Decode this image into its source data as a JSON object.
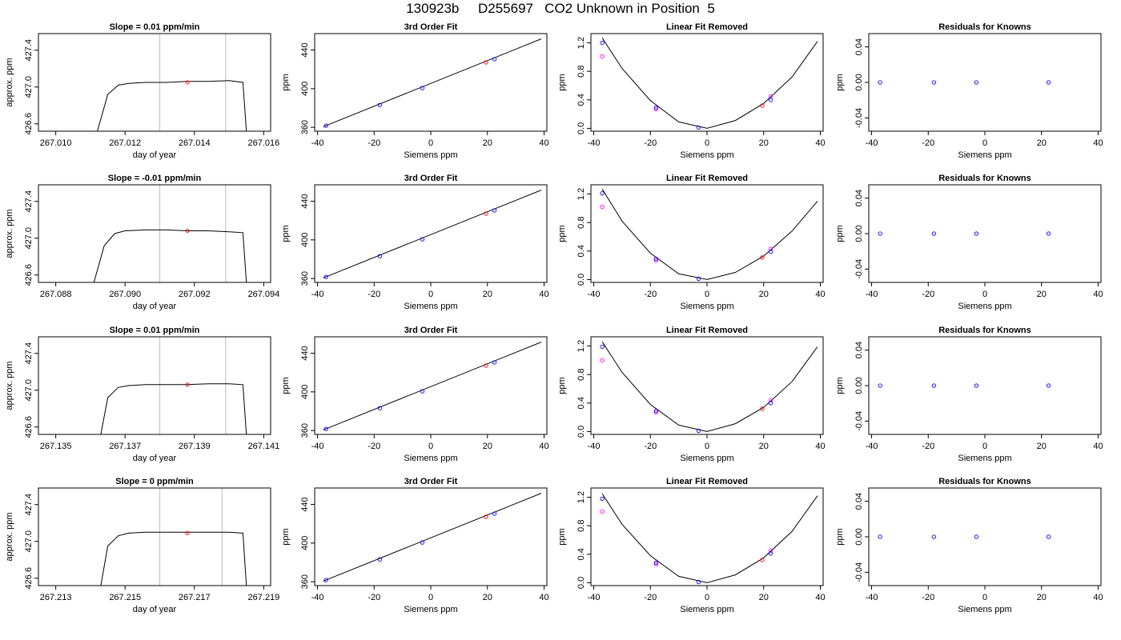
{
  "page": {
    "title": "130923b     D255697   CO2 Unknown in Position  5"
  },
  "style": {
    "line_color": "#000000",
    "grid_color": "#c8c8c8",
    "known_color": "#0000ff",
    "unknown_color": "#ff0000",
    "alt_color": "#ff00ff"
  },
  "chart_data": [
    {
      "type": "line",
      "title": "Slope =  0.01  ppm/min",
      "xlabel": "day of year",
      "ylabel": "approx. ppm",
      "xlim": [
        267.0095,
        267.0162
      ],
      "ylim": [
        426.52,
        427.58
      ],
      "xticks": [
        "267.010",
        "267.012",
        "267.014",
        "267.016"
      ],
      "xtick_values": [
        267.01,
        267.012,
        267.014,
        267.016
      ],
      "yticks": [
        "426.6",
        "427.0",
        "427.4"
      ],
      "ytick_values": [
        426.6,
        427.0,
        427.4
      ],
      "vlines": [
        267.013,
        267.0149
      ],
      "marker": {
        "x": 267.0138,
        "y": 427.05
      },
      "series": [
        {
          "x": [
            267.0112,
            267.0115,
            267.0118,
            267.0121,
            267.0126,
            267.0132,
            267.0138,
            267.0144,
            267.015,
            267.0154,
            267.0155
          ],
          "y": [
            426.52,
            426.92,
            427.02,
            427.04,
            427.05,
            427.05,
            427.06,
            427.06,
            427.07,
            427.05,
            426.52
          ]
        }
      ]
    },
    {
      "type": "scatter",
      "title": "3rd Order Fit",
      "xlabel": "Siemens ppm",
      "ylabel": "ppm",
      "xlim": [
        -41,
        41
      ],
      "ylim": [
        356,
        457
      ],
      "xticks": [
        "-40",
        "-20",
        "0",
        "20",
        "40"
      ],
      "xtick_values": [
        -40,
        -20,
        0,
        20,
        40
      ],
      "yticks": [
        "360",
        "400",
        "440"
      ],
      "ytick_values": [
        360,
        400,
        440
      ],
      "fit_line": {
        "x": [
          -38,
          39
        ],
        "y": [
          360.6,
          451.5
        ]
      },
      "knowns": {
        "x": [
          -37,
          -18,
          -3,
          22.5
        ],
        "y": [
          361.7,
          383.1,
          400.6,
          430.5
        ]
      },
      "unknown": {
        "x": [
          19.5
        ],
        "y": [
          427.2
        ]
      }
    },
    {
      "type": "scatter",
      "title": "Linear Fit Removed",
      "xlabel": "Siemens ppm",
      "ylabel": "ppm",
      "xlim": [
        -41,
        41
      ],
      "ylim": [
        -0.04,
        1.33
      ],
      "xticks": [
        "-40",
        "-20",
        "0",
        "20",
        "40"
      ],
      "xtick_values": [
        -40,
        -20,
        0,
        20,
        40
      ],
      "yticks": [
        "0.0",
        "0.4",
        "0.8",
        "1.2"
      ],
      "ytick_values": [
        0.0,
        0.4,
        0.8,
        1.2
      ],
      "curve": {
        "x": [
          -37,
          -30,
          -20,
          -10,
          0,
          10,
          20,
          30,
          39
        ],
        "y": [
          1.27,
          0.84,
          0.39,
          0.09,
          0.0,
          0.11,
          0.35,
          0.72,
          1.22
        ]
      },
      "knowns": {
        "x": [
          -37,
          -18,
          -3,
          22.5
        ],
        "y": [
          1.2,
          0.29,
          0.01,
          0.4
        ]
      },
      "alt": {
        "x": [
          -37,
          -18,
          22.5
        ],
        "y": [
          1.01,
          0.27,
          0.45
        ]
      },
      "unknown": {
        "x": [
          19.5
        ],
        "y": [
          0.32
        ]
      }
    },
    {
      "type": "scatter",
      "title": "Residuals for Knowns",
      "xlabel": "Siemens ppm",
      "ylabel": "ppm",
      "xlim": [
        -41,
        41
      ],
      "ylim": [
        -0.055,
        0.055
      ],
      "xticks": [
        "-40",
        "-20",
        "0",
        "20",
        "40"
      ],
      "xtick_values": [
        -40,
        -20,
        0,
        20,
        40
      ],
      "yticks": [
        "-0.04",
        "0.00",
        "0.04"
      ],
      "ytick_values": [
        -0.04,
        0.0,
        0.04
      ],
      "knowns": {
        "x": [
          -37,
          -18,
          -3,
          22.5
        ],
        "y": [
          0.0,
          0.0,
          0.0,
          0.0
        ]
      }
    },
    {
      "type": "line",
      "title": "Slope =  -0.01  ppm/min",
      "xlabel": "day of year",
      "ylabel": "approx. ppm",
      "xlim": [
        267.0875,
        267.0942
      ],
      "ylim": [
        426.52,
        427.58
      ],
      "xticks": [
        "267.088",
        "267.090",
        "267.092",
        "267.094"
      ],
      "xtick_values": [
        267.088,
        267.09,
        267.092,
        267.094
      ],
      "yticks": [
        "426.6",
        "427.0",
        "427.4"
      ],
      "ytick_values": [
        426.6,
        427.0,
        427.4
      ],
      "vlines": [
        267.091,
        267.0929
      ],
      "marker": {
        "x": 267.0918,
        "y": 427.08
      },
      "series": [
        {
          "x": [
            267.0891,
            267.0894,
            267.0897,
            267.09,
            267.0906,
            267.0912,
            267.0918,
            267.0924,
            267.093,
            267.0934,
            267.0935
          ],
          "y": [
            426.52,
            426.92,
            427.05,
            427.08,
            427.09,
            427.09,
            427.08,
            427.08,
            427.07,
            427.06,
            426.52
          ]
        }
      ]
    },
    {
      "type": "scatter",
      "title": "3rd Order Fit",
      "xlabel": "Siemens ppm",
      "ylabel": "ppm",
      "xlim": [
        -41,
        41
      ],
      "ylim": [
        356,
        457
      ],
      "xticks": [
        "-40",
        "-20",
        "0",
        "20",
        "40"
      ],
      "xtick_values": [
        -40,
        -20,
        0,
        20,
        40
      ],
      "yticks": [
        "360",
        "400",
        "440"
      ],
      "ytick_values": [
        360,
        400,
        440
      ],
      "fit_line": {
        "x": [
          -38,
          39
        ],
        "y": [
          360.6,
          451.5
        ]
      },
      "knowns": {
        "x": [
          -37,
          -18,
          -3,
          22.5
        ],
        "y": [
          361.7,
          383.1,
          400.6,
          430.5
        ]
      },
      "unknown": {
        "x": [
          19.5
        ],
        "y": [
          427.2
        ]
      }
    },
    {
      "type": "scatter",
      "title": "Linear Fit Removed",
      "xlabel": "Siemens ppm",
      "ylabel": "ppm",
      "xlim": [
        -41,
        41
      ],
      "ylim": [
        -0.04,
        1.33
      ],
      "xticks": [
        "-40",
        "-20",
        "0",
        "20",
        "40"
      ],
      "xtick_values": [
        -40,
        -20,
        0,
        20,
        40
      ],
      "yticks": [
        "0.0",
        "0.4",
        "0.8",
        "1.2"
      ],
      "ytick_values": [
        0.0,
        0.4,
        0.8,
        1.2
      ],
      "curve": {
        "x": [
          -37,
          -30,
          -20,
          -10,
          0,
          10,
          20,
          30,
          39
        ],
        "y": [
          1.27,
          0.82,
          0.37,
          0.08,
          0.0,
          0.1,
          0.33,
          0.68,
          1.1
        ]
      },
      "knowns": {
        "x": [
          -37,
          -18,
          -3,
          22.5
        ],
        "y": [
          1.21,
          0.29,
          0.01,
          0.39
        ]
      },
      "alt": {
        "x": [
          -37,
          -18,
          22.5
        ],
        "y": [
          1.02,
          0.27,
          0.43
        ]
      },
      "unknown": {
        "x": [
          19.5
        ],
        "y": [
          0.31
        ]
      }
    },
    {
      "type": "scatter",
      "title": "Residuals for Knowns",
      "xlabel": "Siemens ppm",
      "ylabel": "ppm",
      "xlim": [
        -41,
        41
      ],
      "ylim": [
        -0.055,
        0.055
      ],
      "xticks": [
        "-40",
        "-20",
        "0",
        "20",
        "40"
      ],
      "xtick_values": [
        -40,
        -20,
        0,
        20,
        40
      ],
      "yticks": [
        "-0.04",
        "0.00",
        "0.04"
      ],
      "ytick_values": [
        -0.04,
        0.0,
        0.04
      ],
      "knowns": {
        "x": [
          -37,
          -18,
          -3,
          22.5
        ],
        "y": [
          0.0,
          0.0,
          0.0,
          0.0
        ]
      }
    },
    {
      "type": "line",
      "title": "Slope =  0.01  ppm/min",
      "xlabel": "day of year",
      "ylabel": "approx. ppm",
      "xlim": [
        267.1345,
        267.1412
      ],
      "ylim": [
        426.52,
        427.58
      ],
      "xticks": [
        "267.135",
        "267.137",
        "267.139",
        "267.141"
      ],
      "xtick_values": [
        267.135,
        267.137,
        267.139,
        267.141
      ],
      "yticks": [
        "426.6",
        "427.0",
        "427.4"
      ],
      "ytick_values": [
        426.6,
        427.0,
        427.4
      ],
      "vlines": [
        267.138,
        267.1399
      ],
      "marker": {
        "x": 267.1388,
        "y": 427.06
      },
      "series": [
        {
          "x": [
            267.1363,
            267.1365,
            267.1368,
            267.1371,
            267.1376,
            267.1382,
            267.1388,
            267.1394,
            267.14,
            267.1404,
            267.1405
          ],
          "y": [
            426.52,
            426.92,
            427.03,
            427.05,
            427.06,
            427.06,
            427.06,
            427.07,
            427.07,
            427.06,
            426.52
          ]
        }
      ]
    },
    {
      "type": "scatter",
      "title": "3rd Order Fit",
      "xlabel": "Siemens ppm",
      "ylabel": "ppm",
      "xlim": [
        -41,
        41
      ],
      "ylim": [
        356,
        457
      ],
      "xticks": [
        "-40",
        "-20",
        "0",
        "20",
        "40"
      ],
      "xtick_values": [
        -40,
        -20,
        0,
        20,
        40
      ],
      "yticks": [
        "360",
        "400",
        "440"
      ],
      "ytick_values": [
        360,
        400,
        440
      ],
      "fit_line": {
        "x": [
          -38,
          39
        ],
        "y": [
          360.6,
          451.5
        ]
      },
      "knowns": {
        "x": [
          -37,
          -18,
          -3,
          22.5
        ],
        "y": [
          361.7,
          383.1,
          400.6,
          430.5
        ]
      },
      "unknown": {
        "x": [
          19.5
        ],
        "y": [
          427.2
        ]
      }
    },
    {
      "type": "scatter",
      "title": "Linear Fit Removed",
      "xlabel": "Siemens ppm",
      "ylabel": "ppm",
      "xlim": [
        -41,
        41
      ],
      "ylim": [
        -0.04,
        1.33
      ],
      "xticks": [
        "-40",
        "-20",
        "0",
        "20",
        "40"
      ],
      "xtick_values": [
        -40,
        -20,
        0,
        20,
        40
      ],
      "yticks": [
        "0.0",
        "0.4",
        "0.8",
        "1.2"
      ],
      "ytick_values": [
        0.0,
        0.4,
        0.8,
        1.2
      ],
      "curve": {
        "x": [
          -37,
          -30,
          -20,
          -10,
          0,
          10,
          20,
          30,
          39
        ],
        "y": [
          1.26,
          0.83,
          0.38,
          0.09,
          0.0,
          0.11,
          0.34,
          0.7,
          1.19
        ]
      },
      "knowns": {
        "x": [
          -37,
          -18,
          -3,
          22.5
        ],
        "y": [
          1.19,
          0.29,
          0.01,
          0.4
        ]
      },
      "alt": {
        "x": [
          -37,
          -18,
          22.5
        ],
        "y": [
          1.0,
          0.27,
          0.44
        ]
      },
      "unknown": {
        "x": [
          19.5
        ],
        "y": [
          0.32
        ]
      }
    },
    {
      "type": "scatter",
      "title": "Residuals for Knowns",
      "xlabel": "Siemens ppm",
      "ylabel": "ppm",
      "xlim": [
        -41,
        41
      ],
      "ylim": [
        -0.055,
        0.055
      ],
      "xticks": [
        "-40",
        "-20",
        "0",
        "20",
        "40"
      ],
      "xtick_values": [
        -40,
        -20,
        0,
        20,
        40
      ],
      "yticks": [
        "-0.04",
        "0.00",
        "0.04"
      ],
      "ytick_values": [
        -0.04,
        0.0,
        0.04
      ],
      "knowns": {
        "x": [
          -37,
          -18,
          -3,
          22.5
        ],
        "y": [
          0.0,
          0.0,
          0.0,
          0.0
        ]
      }
    },
    {
      "type": "line",
      "title": "Slope =  0  ppm/min",
      "xlabel": "day of year",
      "ylabel": "approx. ppm",
      "xlim": [
        267.2125,
        267.2192
      ],
      "ylim": [
        426.52,
        427.58
      ],
      "xticks": [
        "267.213",
        "267.215",
        "267.217",
        "267.219"
      ],
      "xtick_values": [
        267.213,
        267.215,
        267.217,
        267.219
      ],
      "yticks": [
        "426.6",
        "427.0",
        "427.4"
      ],
      "ytick_values": [
        426.6,
        427.0,
        427.4
      ],
      "vlines": [
        267.216,
        267.2178
      ],
      "marker": {
        "x": 267.2168,
        "y": 427.09
      },
      "series": [
        {
          "x": [
            267.2143,
            267.2145,
            267.2148,
            267.2151,
            267.2156,
            267.2162,
            267.2168,
            267.2174,
            267.218,
            267.2184,
            267.2185
          ],
          "y": [
            426.52,
            426.95,
            427.06,
            427.09,
            427.1,
            427.1,
            427.1,
            427.1,
            427.1,
            427.09,
            426.52
          ]
        }
      ]
    },
    {
      "type": "scatter",
      "title": "3rd Order Fit",
      "xlabel": "Siemens ppm",
      "ylabel": "ppm",
      "xlim": [
        -41,
        41
      ],
      "ylim": [
        356,
        457
      ],
      "xticks": [
        "-40",
        "-20",
        "0",
        "20",
        "40"
      ],
      "xtick_values": [
        -40,
        -20,
        0,
        20,
        40
      ],
      "yticks": [
        "360",
        "400",
        "440"
      ],
      "ytick_values": [
        360,
        400,
        440
      ],
      "fit_line": {
        "x": [
          -38,
          39
        ],
        "y": [
          360.6,
          451.5
        ]
      },
      "knowns": {
        "x": [
          -37,
          -18,
          -3,
          22.5
        ],
        "y": [
          361.7,
          383.1,
          400.6,
          430.5
        ]
      },
      "unknown": {
        "x": [
          19.5
        ],
        "y": [
          427.2
        ]
      }
    },
    {
      "type": "scatter",
      "title": "Linear Fit Removed",
      "xlabel": "Siemens ppm",
      "ylabel": "ppm",
      "xlim": [
        -41,
        41
      ],
      "ylim": [
        -0.04,
        1.33
      ],
      "xticks": [
        "-40",
        "-20",
        "0",
        "20",
        "40"
      ],
      "xtick_values": [
        -40,
        -20,
        0,
        20,
        40
      ],
      "yticks": [
        "0.0",
        "0.4",
        "0.8",
        "1.2"
      ],
      "ytick_values": [
        0.0,
        0.4,
        0.8,
        1.2
      ],
      "curve": {
        "x": [
          -37,
          -30,
          -20,
          -10,
          0,
          10,
          20,
          30,
          39
        ],
        "y": [
          1.25,
          0.82,
          0.38,
          0.09,
          0.0,
          0.11,
          0.35,
          0.72,
          1.22
        ]
      },
      "knowns": {
        "x": [
          -37,
          -18,
          -3,
          22.5
        ],
        "y": [
          1.18,
          0.28,
          0.01,
          0.41
        ]
      },
      "alt": {
        "x": [
          -37,
          -18,
          22.5
        ],
        "y": [
          1.0,
          0.26,
          0.45
        ]
      },
      "unknown": {
        "x": [
          19.5
        ],
        "y": [
          0.32
        ]
      }
    },
    {
      "type": "scatter",
      "title": "Residuals for Knowns",
      "xlabel": "Siemens ppm",
      "ylabel": "ppm",
      "xlim": [
        -41,
        41
      ],
      "ylim": [
        -0.055,
        0.055
      ],
      "xticks": [
        "-40",
        "-20",
        "0",
        "20",
        "40"
      ],
      "xtick_values": [
        -40,
        -20,
        0,
        20,
        40
      ],
      "yticks": [
        "-0.04",
        "0.00",
        "0.04"
      ],
      "ytick_values": [
        -0.04,
        0.0,
        0.04
      ],
      "knowns": {
        "x": [
          -37,
          -18,
          -3,
          22.5
        ],
        "y": [
          0.0,
          0.0,
          0.0,
          0.0
        ]
      }
    }
  ]
}
